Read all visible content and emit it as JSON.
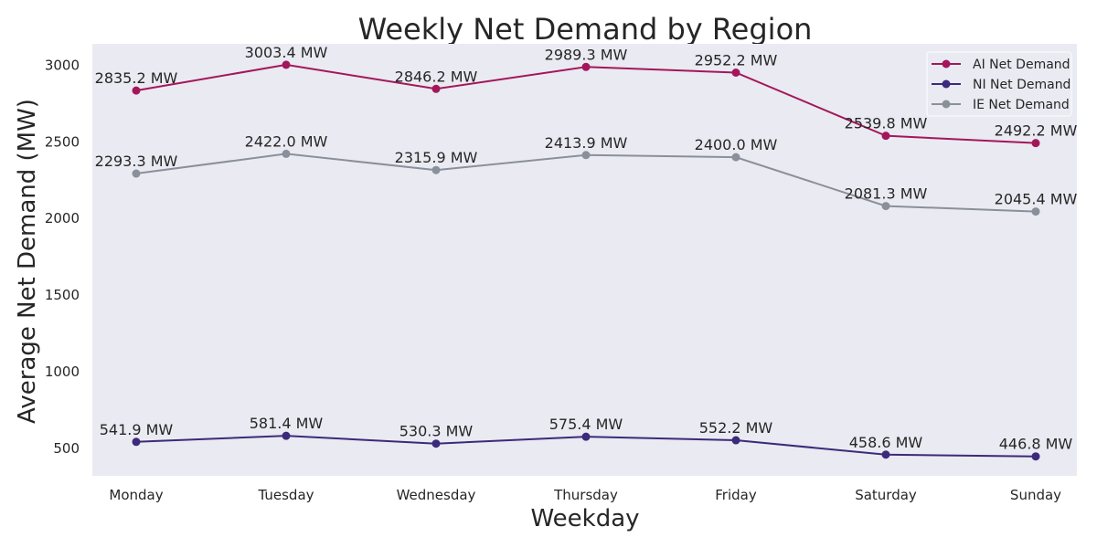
{
  "chart_data": {
    "type": "line",
    "title": "Weekly Net Demand by Region",
    "xlabel": "Weekday",
    "ylabel": "Average Net Demand (MW)",
    "categories": [
      "Monday",
      "Tuesday",
      "Wednesday",
      "Thursday",
      "Friday",
      "Saturday",
      "Sunday"
    ],
    "ylim": [
      320,
      3140
    ],
    "yticks": [
      500,
      1000,
      1500,
      2000,
      2500,
      3000
    ],
    "grid": false,
    "legend_position": "top-right",
    "background_color": "#eaeaf2",
    "series": [
      {
        "name": "AI Net Demand",
        "color": "#a3175a",
        "values": [
          2835.2,
          3003.4,
          2846.2,
          2989.3,
          2952.2,
          2539.8,
          2492.2
        ],
        "labels": [
          "2835.2 MW",
          "3003.4 MW",
          "2846.2 MW",
          "2989.3 MW",
          "2952.2 MW",
          "2539.8 MW",
          "2492.2 MW"
        ]
      },
      {
        "name": "NI Net Demand",
        "color": "#3c2a7a",
        "values": [
          541.9,
          581.4,
          530.3,
          575.4,
          552.2,
          458.6,
          446.8
        ],
        "labels": [
          "541.9 MW",
          "581.4 MW",
          "530.3 MW",
          "575.4 MW",
          "552.2 MW",
          "458.6 MW",
          "446.8 MW"
        ]
      },
      {
        "name": "IE Net Demand",
        "color": "#8a9099",
        "values": [
          2293.3,
          2422.0,
          2315.9,
          2413.9,
          2400.0,
          2081.3,
          2045.4
        ],
        "labels": [
          "2293.3 MW",
          "2422.0 MW",
          "2315.9 MW",
          "2413.9 MW",
          "2400.0 MW",
          "2081.3 MW",
          "2045.4 MW"
        ]
      }
    ]
  }
}
